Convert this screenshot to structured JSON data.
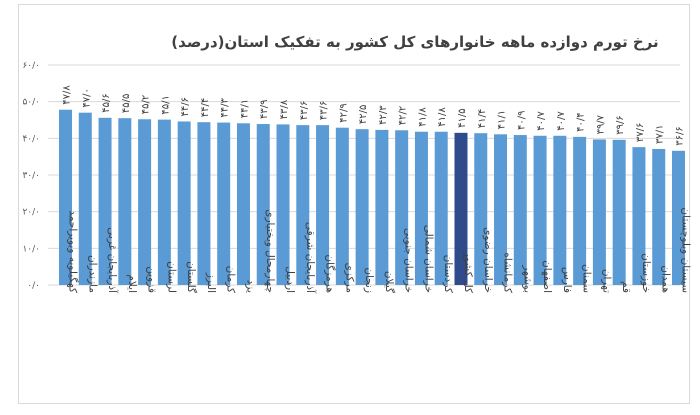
{
  "chart_data": {
    "type": "bar",
    "title": "نرخ تورم دوازده ماهه خانوارهای کل کشور به تفکیک استان(درصد)",
    "xlabel": "",
    "ylabel": "",
    "ylim": [
      0,
      60
    ],
    "grid": true,
    "legend": "none",
    "y_ticks": [
      0,
      10,
      20,
      30,
      40,
      50,
      60
    ],
    "y_tick_labels": [
      "۰/۰",
      "۱۰/۰",
      "۲۰/۰",
      "۳۰/۰",
      "۴۰/۰",
      "۵۰/۰",
      "۶۰/۰"
    ],
    "categories": [
      "کهگیلویه وبویراحمد",
      "مازندران",
      "آذربایجان غربی",
      "ایلام",
      "قزوین",
      "لرستان",
      "گلستان",
      "البرز",
      "کرمان",
      "یزد",
      "چهارمحال وبختیاری",
      "اردبیل",
      "آذربایجان شرقی",
      "هرمزگان",
      "مرکزی",
      "زنجان",
      "گیلان",
      "خراسان جنوبی",
      "خراسان شمالی",
      "کردستان",
      "کل کشور",
      "خراسان رضوی",
      "کرمانشاه",
      "بوشهر",
      "اصفهان",
      "فارس",
      "سمنان",
      "تهران",
      "قم",
      "خوزستان",
      "همدان",
      "سیستان وبلوچستان"
    ],
    "values": [
      47.8,
      47.0,
      45.6,
      45.5,
      45.2,
      45.1,
      44.6,
      44.4,
      44.3,
      44.1,
      43.9,
      43.8,
      43.6,
      43.6,
      42.9,
      42.5,
      42.3,
      42.2,
      41.8,
      41.8,
      41.5,
      41.4,
      41.1,
      40.9,
      40.7,
      40.7,
      40.4,
      39.7,
      39.6,
      37.6,
      37.1,
      36.6
    ],
    "value_labels": [
      "۴۷/۸",
      "۴۷/۰",
      "۴۵/۶",
      "۴۵/۵",
      "۴۵/۲",
      "۴۵/۱",
      "۴۴/۶",
      "۴۴/۴",
      "۴۴/۳",
      "۴۴/۱",
      "۴۳/۹",
      "۴۳/۸",
      "۴۳/۶",
      "۴۳/۶",
      "۴۲/۹",
      "۴۲/۵",
      "۴۲/۳",
      "۴۲/۲",
      "۴۱/۸",
      "۴۱/۸",
      "۴۱/۵",
      "۴۱/۴",
      "۴۱/۱",
      "۴۰/۹",
      "۴۰/۷",
      "۴۰/۷",
      "۴۰/۴",
      "۳۹/۷",
      "۳۹/۶",
      "۳۷/۶",
      "۳۷/۱",
      "۳۶/۶"
    ],
    "highlight_category": "کل کشور",
    "colors": {
      "bar": "#5b9bd5",
      "highlight": "#2f4b8c",
      "grid": "#d9d9d9"
    }
  }
}
